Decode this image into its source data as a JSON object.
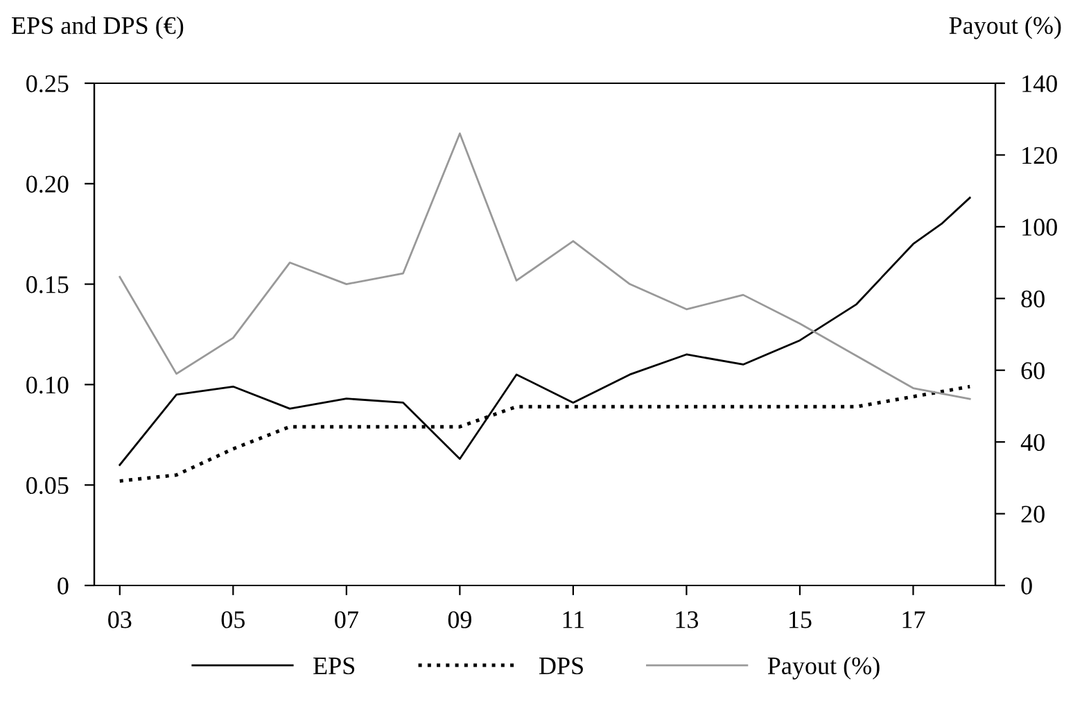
{
  "chart_data": {
    "type": "line",
    "ylabel": "EPS and DPS (€)",
    "y2label": "Payout (%)",
    "xlim": [
      2.55,
      18.45
    ],
    "xticks": [
      {
        "value": 3,
        "label": "03"
      },
      {
        "value": 5,
        "label": "05"
      },
      {
        "value": 7,
        "label": "07"
      },
      {
        "value": 9,
        "label": "09"
      },
      {
        "value": 11,
        "label": "11"
      },
      {
        "value": 13,
        "label": "13"
      },
      {
        "value": 15,
        "label": "15"
      },
      {
        "value": 17,
        "label": "17"
      }
    ],
    "ylim": [
      0,
      0.25
    ],
    "yticks": [
      0,
      {
        "value": 0.05,
        "label": "0.05"
      },
      {
        "value": 0.1,
        "label": "0.10"
      },
      {
        "value": 0.15,
        "label": "0.15"
      },
      {
        "value": 0.2,
        "label": "0.20"
      },
      {
        "value": 0.25,
        "label": "0.25"
      }
    ],
    "y2lim": [
      0,
      140
    ],
    "y2ticks": [
      0,
      20,
      40,
      60,
      80,
      100,
      120,
      140
    ],
    "grid": false,
    "legend": "bottom",
    "series": [
      {
        "name": "EPS",
        "color": "#000000",
        "line_style": "solid",
        "x": [
          3,
          4,
          5,
          6,
          7,
          8,
          9,
          10,
          11,
          12,
          13,
          14,
          15,
          16,
          17,
          17.5,
          18
        ],
        "values": [
          0.06,
          0.095,
          0.099,
          0.088,
          0.093,
          0.091,
          0.063,
          0.105,
          0.091,
          0.105,
          0.115,
          0.11,
          0.122,
          0.14,
          0.17,
          0.18,
          0.193
        ]
      },
      {
        "name": "DPS",
        "color": "#000000",
        "line_style": "dotted",
        "x": [
          3,
          4,
          5,
          6,
          7,
          8,
          9,
          10,
          11,
          12,
          13,
          14,
          15,
          16,
          17,
          18
        ],
        "values": [
          0.052,
          0.055,
          0.068,
          0.079,
          0.079,
          0.079,
          0.079,
          0.089,
          0.089,
          0.089,
          0.089,
          0.089,
          0.089,
          0.089,
          0.094,
          0.099
        ]
      },
      {
        "name": "Payout (%)",
        "color": "#999999",
        "line_style": "solid",
        "axis": "y2",
        "x": [
          3,
          4,
          5,
          6,
          7,
          8,
          9,
          10,
          11,
          12,
          13,
          14,
          15,
          16,
          17,
          18
        ],
        "values": [
          86,
          59,
          69,
          90,
          84,
          87,
          126,
          85,
          96,
          84,
          77,
          81,
          73,
          64,
          55,
          52
        ]
      }
    ]
  }
}
